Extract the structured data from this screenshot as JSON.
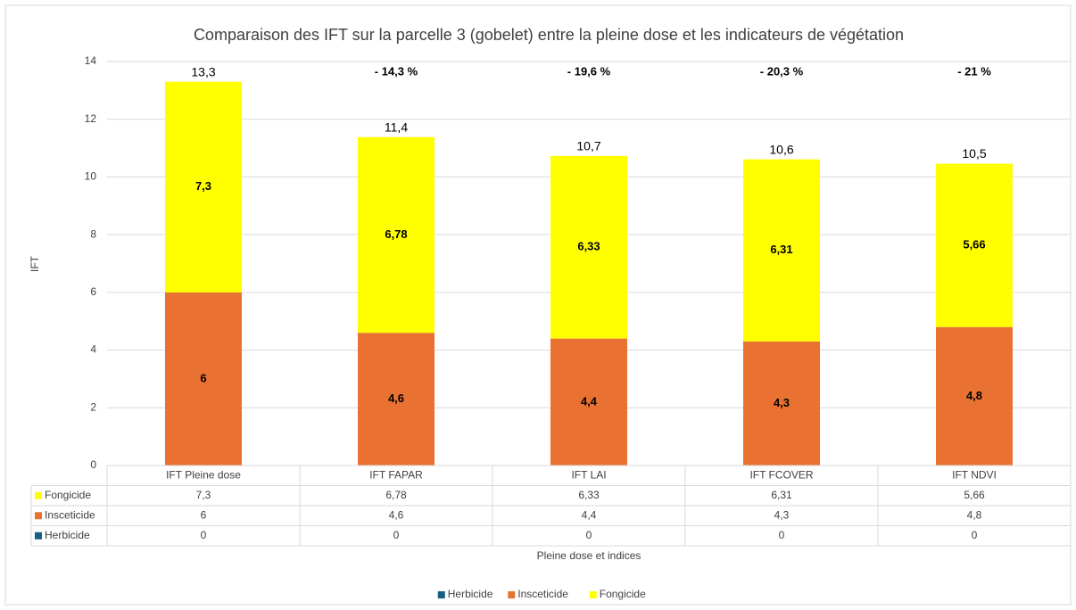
{
  "chart_data": {
    "type": "stacked_bar",
    "title": "Comparaison des IFT sur la parcelle 3 (gobelet) entre la pleine dose et les indicateurs de végétation",
    "y_label": "IFT",
    "x_label": "Pleine dose et indices",
    "categories": [
      "IFT Pleine dose",
      "IFT FAPAR",
      "IFT LAI",
      "IFT FCOVER",
      "IFT NDVI"
    ],
    "series": [
      {
        "name": "Herbicide",
        "color": "#156082",
        "values": [
          0,
          0,
          0,
          0,
          0
        ]
      },
      {
        "name": "Insceticide",
        "color": "#e97132",
        "values": [
          6,
          4.6,
          4.4,
          4.3,
          4.8
        ],
        "value_labels": [
          "6",
          "4,6",
          "4,4",
          "4,3",
          "4,8"
        ]
      },
      {
        "name": "Fongicide",
        "color": "#ffff00",
        "values": [
          7.3,
          6.78,
          6.33,
          6.31,
          5.66
        ],
        "value_labels": [
          "7,3",
          "6,78",
          "6,33",
          "6,31",
          "5,66"
        ]
      }
    ],
    "total_labels": [
      "13,3",
      "11,4",
      "10,7",
      "10,6",
      "10,5"
    ],
    "reduction_labels": [
      null,
      "- 14,3 %",
      "- 19,6 %",
      "- 20,3 %",
      "- 21 %"
    ],
    "ylim": [
      0,
      14
    ],
    "yticks": [
      0,
      2,
      4,
      6,
      8,
      10,
      12,
      14
    ],
    "grid": true,
    "legend": "bottom"
  }
}
